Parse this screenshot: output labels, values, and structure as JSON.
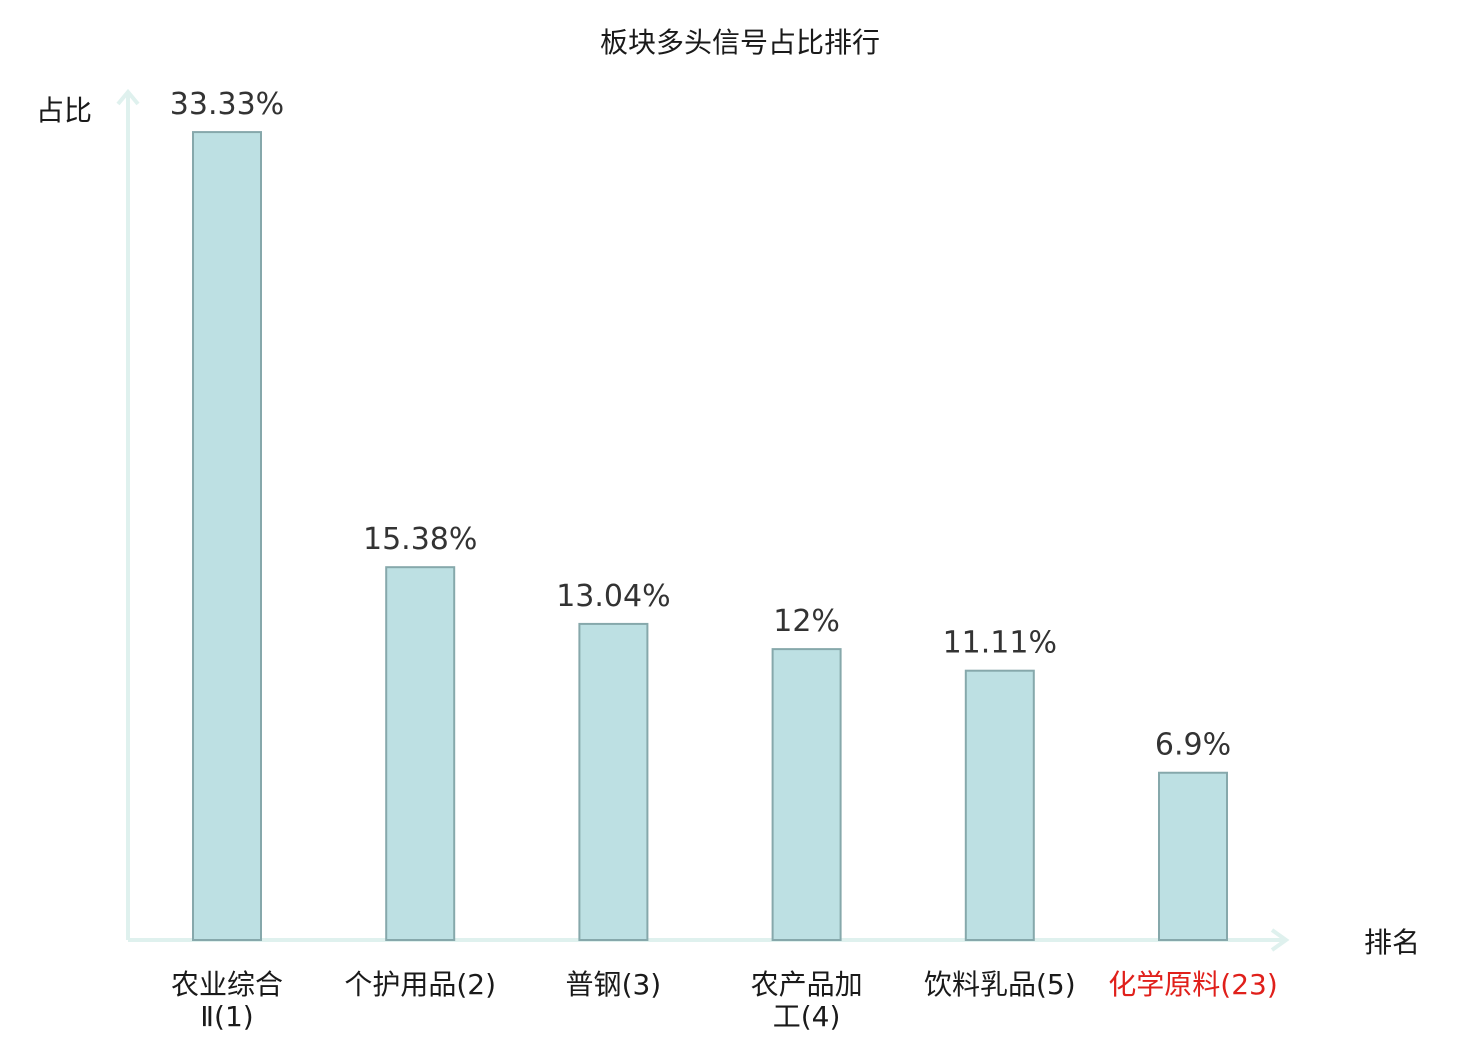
{
  "chart_data": {
    "type": "bar",
    "title": "板块多头信号占比排行",
    "ylabel": "占比",
    "xlabel": "排名",
    "ylim": [
      0,
      35
    ],
    "grid": false,
    "categories": [
      {
        "name": "农业综合",
        "rank": "Ⅱ(1)",
        "highlight": false
      },
      {
        "name": "个护用品",
        "rank": "(2)",
        "highlight": false
      },
      {
        "name": "普钢",
        "rank": "(3)",
        "highlight": false
      },
      {
        "name": "农产品加",
        "rank": "工(4)",
        "highlight": false
      },
      {
        "name": "饮料乳品",
        "rank": "(5)",
        "highlight": false
      },
      {
        "name": "化学原料",
        "rank": "(23)",
        "highlight": true
      }
    ],
    "values": [
      33.33,
      15.38,
      13.04,
      12,
      11.11,
      6.9
    ],
    "value_labels": [
      "33.33%",
      "15.38%",
      "13.04%",
      "12%",
      "11.11%",
      "6.9%"
    ],
    "colors": {
      "bar_fill": "#bde0e3",
      "bar_stroke": "#86a8ab",
      "axis": "#dff1ee",
      "highlight": "#e0201b"
    }
  }
}
